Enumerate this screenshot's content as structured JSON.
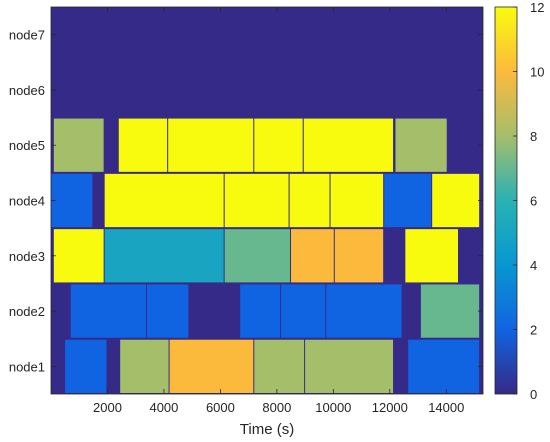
{
  "chart_data": {
    "type": "heatmap",
    "title": "",
    "xlabel": "Time (s)",
    "ylabel": "",
    "xlim": [
      0,
      15300
    ],
    "xticks": [
      2000,
      4000,
      6000,
      8000,
      10000,
      12000,
      14000
    ],
    "xtick_labels": [
      "2000",
      "4000",
      "6000",
      "8000",
      "10000",
      "12000",
      "14000"
    ],
    "rows": [
      "node1",
      "node2",
      "node3",
      "node4",
      "node5",
      "node6",
      "node7"
    ],
    "colorbar": {
      "range": [
        0,
        12
      ],
      "ticks": [
        0,
        2,
        4,
        6,
        8,
        10,
        12
      ],
      "tick_labels": [
        "0",
        "2",
        "4",
        "6",
        "8",
        "10",
        "12"
      ],
      "colormap": "parula"
    },
    "background_value": 0,
    "segments": [
      {
        "row": "node1",
        "start": 500,
        "end": 2000,
        "value": 2
      },
      {
        "row": "node1",
        "start": 2450,
        "end": 4200,
        "value": 8
      },
      {
        "row": "node1",
        "start": 4200,
        "end": 7200,
        "value": 10
      },
      {
        "row": "node1",
        "start": 7200,
        "end": 9000,
        "value": 8
      },
      {
        "row": "node1",
        "start": 9000,
        "end": 12150,
        "value": 8
      },
      {
        "row": "node1",
        "start": 12650,
        "end": 15200,
        "value": 2
      },
      {
        "row": "node2",
        "start": 700,
        "end": 3400,
        "value": 2
      },
      {
        "row": "node2",
        "start": 3400,
        "end": 4900,
        "value": 2
      },
      {
        "row": "node2",
        "start": 6700,
        "end": 8150,
        "value": 2
      },
      {
        "row": "node2",
        "start": 8150,
        "end": 9750,
        "value": 2
      },
      {
        "row": "node2",
        "start": 9750,
        "end": 12450,
        "value": 2
      },
      {
        "row": "node2",
        "start": 13100,
        "end": 15200,
        "value": 7
      },
      {
        "row": "node3",
        "start": 100,
        "end": 1900,
        "value": 12
      },
      {
        "row": "node3",
        "start": 1900,
        "end": 6150,
        "value": 5
      },
      {
        "row": "node3",
        "start": 6150,
        "end": 8500,
        "value": 7
      },
      {
        "row": "node3",
        "start": 8500,
        "end": 10050,
        "value": 10
      },
      {
        "row": "node3",
        "start": 10050,
        "end": 11800,
        "value": 10
      },
      {
        "row": "node3",
        "start": 12550,
        "end": 14450,
        "value": 12
      },
      {
        "row": "node4",
        "start": 0,
        "end": 1500,
        "value": 2
      },
      {
        "row": "node4",
        "start": 1900,
        "end": 6150,
        "value": 12
      },
      {
        "row": "node4",
        "start": 6150,
        "end": 8450,
        "value": 12
      },
      {
        "row": "node4",
        "start": 8450,
        "end": 9900,
        "value": 12
      },
      {
        "row": "node4",
        "start": 9900,
        "end": 11800,
        "value": 12
      },
      {
        "row": "node4",
        "start": 11800,
        "end": 13500,
        "value": 2
      },
      {
        "row": "node4",
        "start": 13500,
        "end": 15200,
        "value": 12
      },
      {
        "row": "node5",
        "start": 100,
        "end": 1900,
        "value": 8
      },
      {
        "row": "node5",
        "start": 2400,
        "end": 4150,
        "value": 12
      },
      {
        "row": "node5",
        "start": 4150,
        "end": 7200,
        "value": 12
      },
      {
        "row": "node5",
        "start": 7200,
        "end": 8950,
        "value": 12
      },
      {
        "row": "node5",
        "start": 8950,
        "end": 12150,
        "value": 12
      },
      {
        "row": "node5",
        "start": 12200,
        "end": 14050,
        "value": 8
      }
    ]
  }
}
